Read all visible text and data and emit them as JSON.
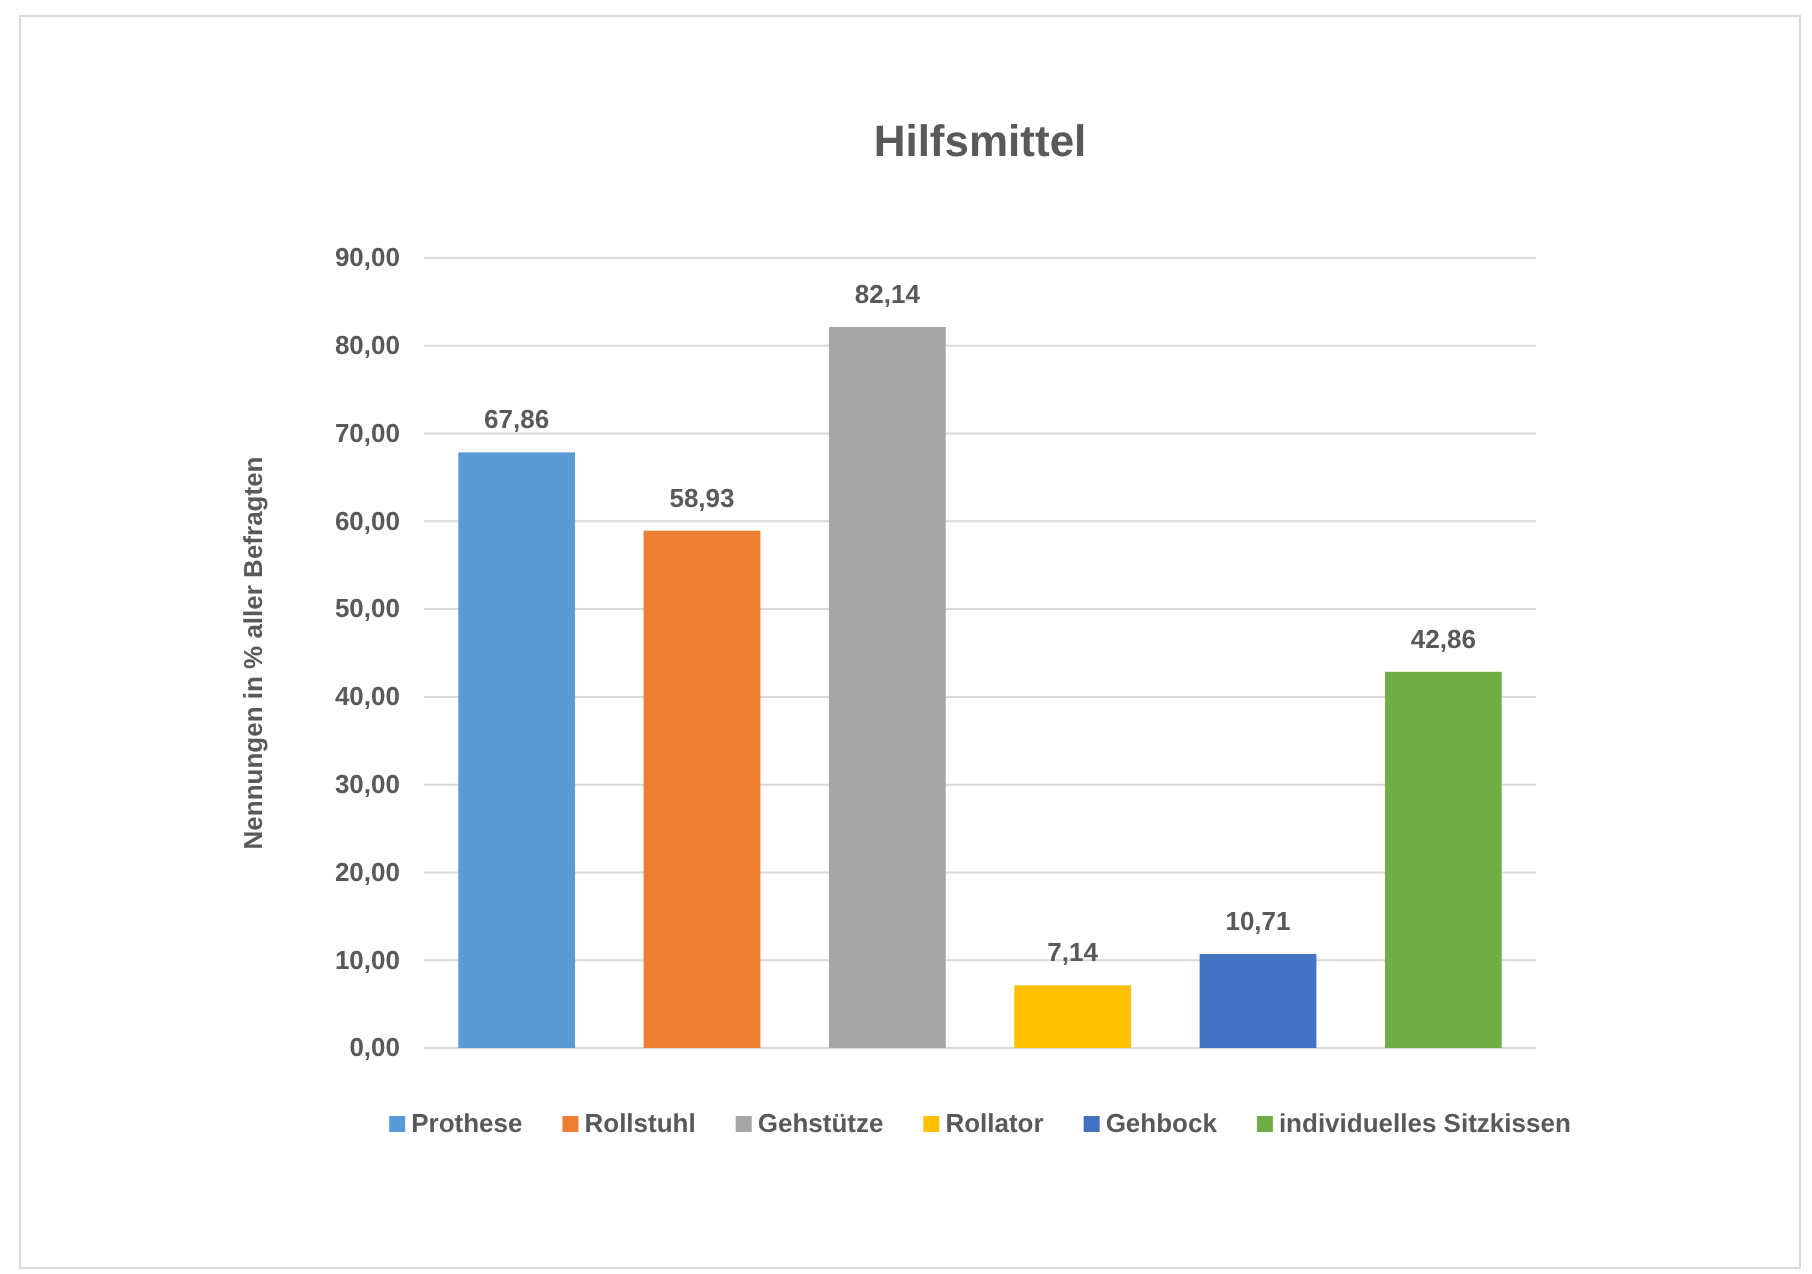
{
  "chart_data": {
    "type": "bar",
    "title": "Hilfsmittel",
    "ylabel": "Nennungen in % aller Befragten",
    "categories": [
      null,
      null,
      null,
      null,
      null,
      null
    ],
    "series": [
      {
        "name": "Prothese",
        "color": "#5b9bd5",
        "values": [
          67.86,
          null,
          null,
          null,
          null,
          null
        ],
        "value_labels": [
          "67,86",
          null,
          null,
          null,
          null,
          null
        ]
      },
      {
        "name": "Rollstuhl",
        "color": "#ed7d31",
        "values": [
          null,
          58.93,
          null,
          null,
          null,
          null
        ],
        "value_labels": [
          null,
          "58,93",
          null,
          null,
          null,
          null
        ]
      },
      {
        "name": "Gehstütze",
        "color": "#a5a5a5",
        "values": [
          null,
          null,
          82.14,
          null,
          null,
          null
        ],
        "value_labels": [
          null,
          null,
          "82,14",
          null,
          null,
          null
        ]
      },
      {
        "name": "Rollator",
        "color": "#ffc000",
        "values": [
          null,
          null,
          null,
          7.14,
          null,
          null
        ],
        "value_labels": [
          null,
          null,
          null,
          "7,14",
          null,
          null
        ]
      },
      {
        "name": "Gehbock",
        "color": "#4472c4",
        "values": [
          null,
          null,
          null,
          null,
          10.71,
          null
        ],
        "value_labels": [
          null,
          null,
          null,
          null,
          "10,71",
          null
        ]
      },
      {
        "name": "individuelles Sitzkissen",
        "color": "#70ad47",
        "values": [
          null,
          null,
          null,
          null,
          null,
          42.86
        ],
        "value_labels": [
          null,
          null,
          null,
          null,
          null,
          "42,86"
        ]
      }
    ],
    "ylim": [
      0,
      90
    ],
    "yticks": [
      {
        "value": 0,
        "label": "0,00"
      },
      {
        "value": 10,
        "label": "10,00"
      },
      {
        "value": 20,
        "label": "20,00"
      },
      {
        "value": 30,
        "label": "30,00"
      },
      {
        "value": 40,
        "label": "40,00"
      },
      {
        "value": 50,
        "label": "50,00"
      },
      {
        "value": 60,
        "label": "60,00"
      },
      {
        "value": 70,
        "label": "70,00"
      },
      {
        "value": 80,
        "label": "80,00"
      },
      {
        "value": 90,
        "label": "90,00"
      }
    ],
    "grid": "y",
    "legend": "bottom",
    "tick_labels": "y"
  }
}
